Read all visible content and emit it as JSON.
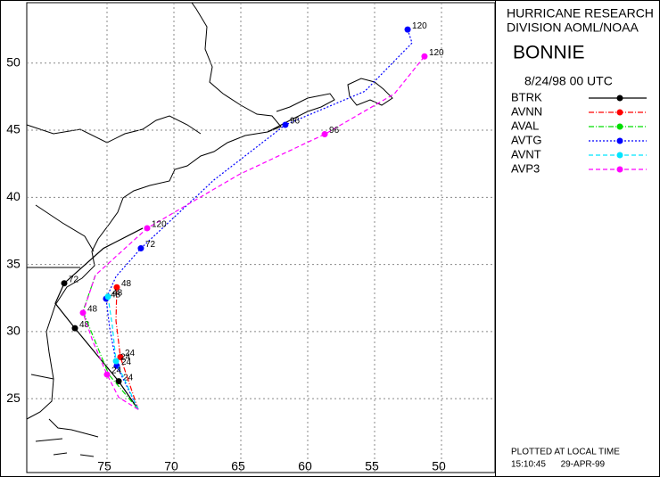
{
  "chart_data": {
    "type": "line",
    "title": [
      "HURRICANE RESEARCH",
      "DIVISION AOML/NOAA"
    ],
    "storm": "BONNIE",
    "subtitle": "8/24/98 00   UTC",
    "footer": [
      "PLOTTED AT LOCAL TIME",
      "15:10:45      29-APR-99"
    ],
    "xlim": [
      81,
      46
    ],
    "xticks": [
      75,
      70,
      65,
      60,
      55,
      50
    ],
    "ylim": [
      19.5,
      54.5
    ],
    "yticks": [
      25,
      30,
      35,
      40,
      45,
      50
    ],
    "grid": true,
    "series": [
      {
        "name": "BTRK",
        "color": "#000000",
        "line_style": "solid",
        "x": [
          72.67,
          74.13,
          77.4,
          78.87,
          78.2,
          75.27,
          72.33
        ],
        "values": [
          24.2,
          26.3,
          30.25,
          32.1,
          33.6,
          36.2,
          37.7
        ],
        "point_labels": [
          null,
          "24",
          "48",
          null,
          "72",
          null,
          null
        ]
      },
      {
        "name": "AVNN",
        "color": "#ff0000",
        "line_style": "dashdot",
        "x": [
          72.67,
          74.0,
          74.33,
          74.27
        ],
        "values": [
          24.2,
          28.1,
          30.8,
          33.3
        ],
        "point_labels": [
          null,
          "24",
          null,
          "48"
        ]
      },
      {
        "name": "AVAL",
        "color": "#00dd00",
        "line_style": "dashdot",
        "x": [
          72.67,
          74.87,
          76.8,
          75.87
        ],
        "values": [
          24.2,
          26.8,
          31.5,
          34.2
        ],
        "point_labels": [
          null,
          null,
          null,
          null
        ]
      },
      {
        "name": "AVTG",
        "color": "#0000ff",
        "line_style": "dotted",
        "x": [
          72.67,
          74.27,
          74.8,
          75.07,
          74.33,
          72.47,
          67.0,
          61.67,
          55.73,
          52.2,
          52.53
        ],
        "values": [
          24.2,
          27.45,
          30.25,
          32.45,
          34.1,
          36.2,
          41.3,
          45.4,
          47.9,
          51.5,
          52.5
        ],
        "point_labels": [
          null,
          "24",
          null,
          "48",
          null,
          "72",
          null,
          "96",
          null,
          null,
          "120"
        ]
      },
      {
        "name": "AVNT",
        "color": "#00e5ff",
        "line_style": "dashed",
        "x": [
          72.67,
          74.33,
          74.6,
          74.93
        ],
        "values": [
          24.2,
          27.8,
          30.4,
          32.6
        ],
        "point_labels": [
          null,
          "24",
          null,
          "48"
        ]
      },
      {
        "name": "AVP3",
        "color": "#ff00ff",
        "line_style": "dashed",
        "x": [
          72.67,
          74.13,
          75.0,
          76.07,
          76.8,
          75.87,
          72.0,
          65.13,
          58.73,
          53.53,
          51.27
        ],
        "values": [
          24.2,
          25.1,
          26.8,
          29.3,
          31.4,
          34.2,
          37.7,
          41.7,
          44.7,
          47.7,
          50.5
        ],
        "point_labels": [
          null,
          null,
          "24",
          null,
          "48",
          null,
          "120",
          null,
          "96",
          null,
          "120"
        ]
      }
    ]
  }
}
